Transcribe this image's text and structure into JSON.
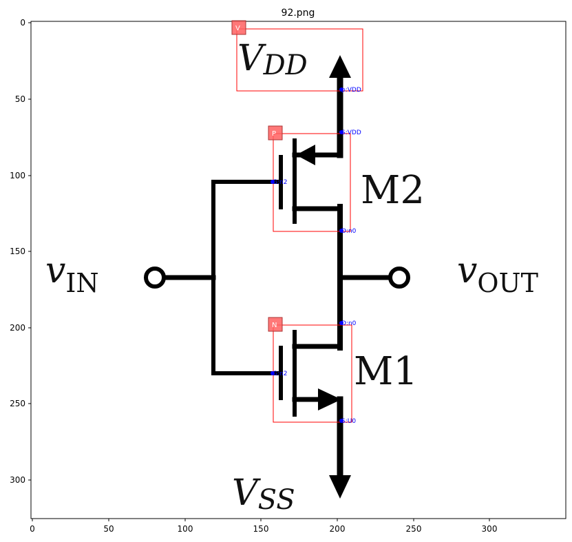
{
  "figure": {
    "title": "92.png",
    "x_ticks": [
      "0",
      "50",
      "100",
      "150",
      "200",
      "250",
      "300"
    ],
    "y_ticks": [
      "0",
      "50",
      "100",
      "150",
      "200",
      "250",
      "300"
    ]
  },
  "circuit": {
    "labels": {
      "vdd_main": "V",
      "vdd_sub": "DD",
      "vss_main": "V",
      "vss_sub": "SS",
      "vin_main": "v",
      "vin_sub": "IN",
      "vout_main": "v",
      "vout_sub": "OUT",
      "m2": "M2",
      "m1": "M1"
    }
  },
  "annotations": {
    "box_color": "#ff0000",
    "pin_color": "#0000ff",
    "tags": {
      "vdd": "V",
      "pmos": "P",
      "nmos": "N"
    },
    "pins": {
      "vdd_p": "p:VDD",
      "m2_s": "S:VDD",
      "m2_g": "G:n2",
      "m2_d": "D:n0",
      "m1_d": "D:n0",
      "m1_g": "G:n2",
      "m1_s": "S:U0"
    }
  }
}
